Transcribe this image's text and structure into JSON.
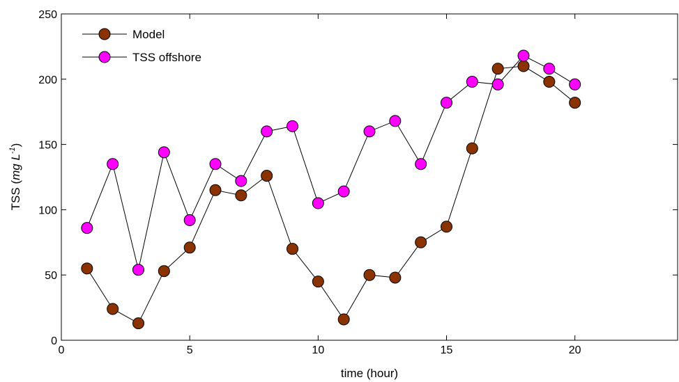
{
  "chart_data": {
    "type": "line",
    "xlabel": "time (hour)",
    "ylabel_parts": {
      "main": "TSS (",
      "unit": "mg L",
      "exponent": "-1",
      "close": ")"
    },
    "xlim": [
      0,
      24
    ],
    "ylim": [
      0,
      250
    ],
    "xticks": [
      0,
      5,
      10,
      15,
      20
    ],
    "yticks": [
      0,
      50,
      100,
      150,
      200,
      250
    ],
    "grid": false,
    "legend_position": "top-left",
    "x": [
      1,
      2,
      3,
      4,
      5,
      6,
      7,
      8,
      9,
      10,
      11,
      12,
      13,
      14,
      15,
      16,
      17,
      18,
      19,
      20
    ],
    "series": [
      {
        "name": "Model",
        "color": "#8B3300",
        "values": [
          55,
          24,
          13,
          53,
          71,
          115,
          111,
          126,
          70,
          45,
          16,
          50,
          48,
          75,
          87,
          147,
          208,
          210,
          198,
          182
        ]
      },
      {
        "name": "TSS offshore",
        "color": "#FF00FF",
        "values": [
          86,
          135,
          54,
          144,
          92,
          135,
          122,
          160,
          164,
          105,
          114,
          160,
          168,
          135,
          182,
          198,
          196,
          218,
          208,
          196
        ]
      }
    ]
  }
}
